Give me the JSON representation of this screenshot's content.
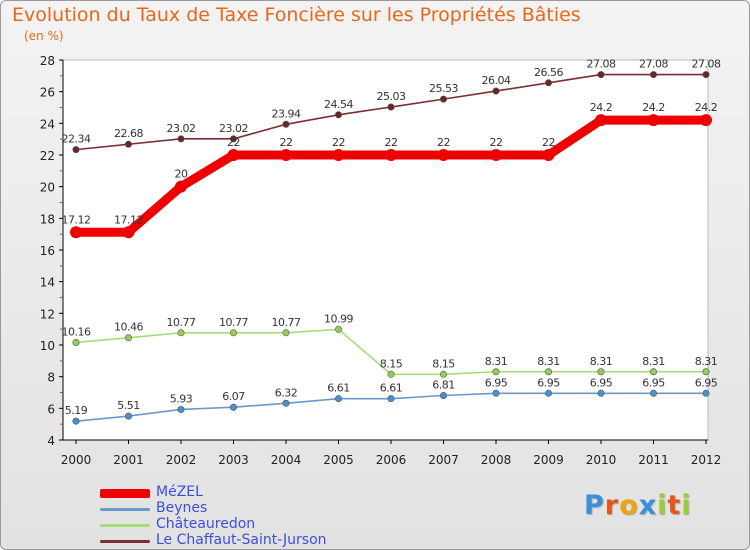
{
  "header": {
    "title": "Evolution du Taux de Taxe Foncière sur les Propriétés Bâties",
    "unit": "(en %)"
  },
  "chart_data": {
    "type": "line",
    "title": "Evolution du Taux de Taxe Foncière sur les Propriétés Bâties",
    "ylabel": "(en %)",
    "xlabel": "",
    "categories": [
      "2000",
      "2001",
      "2002",
      "2003",
      "2004",
      "2005",
      "2006",
      "2007",
      "2008",
      "2009",
      "2010",
      "2011",
      "2012"
    ],
    "ylim": [
      4,
      28
    ],
    "yticks": [
      4,
      6,
      8,
      10,
      12,
      14,
      16,
      18,
      20,
      22,
      24,
      26,
      28
    ],
    "grid": false,
    "legend_position": "bottom-left",
    "series": [
      {
        "name": "MéZEL",
        "color": "#ee0000",
        "emphasis": true,
        "values": [
          17.12,
          17.12,
          20,
          22,
          22,
          22,
          22,
          22,
          22,
          22,
          24.2,
          24.2,
          24.2
        ],
        "labels": [
          "17.12",
          "17.12",
          "20",
          "22",
          "22",
          "22",
          "22",
          "22",
          "22",
          "22",
          "24.2",
          "24.2",
          "24.2"
        ]
      },
      {
        "name": "Beynes",
        "color": "#6b9ac7",
        "marker_color": "#4a8fd0",
        "emphasis": false,
        "values": [
          5.19,
          5.51,
          5.93,
          6.07,
          6.32,
          6.61,
          6.61,
          6.81,
          6.95,
          6.95,
          6.95,
          6.95,
          6.95
        ],
        "labels": [
          "5.19",
          "5.51",
          "5.93",
          "6.07",
          "6.32",
          "6.61",
          "6.61",
          "6.81",
          "6.95",
          "6.95",
          "6.95",
          "6.95",
          "6.95"
        ]
      },
      {
        "name": "Châteauredon",
        "color": "#a6dc78",
        "marker_color": "#8ed255",
        "emphasis": false,
        "values": [
          10.16,
          10.46,
          10.77,
          10.77,
          10.77,
          10.99,
          8.15,
          8.15,
          8.31,
          8.31,
          8.31,
          8.31,
          8.31
        ],
        "labels": [
          "10.16",
          "10.46",
          "10.77",
          "10.77",
          "10.77",
          "10.99",
          "8.15",
          "8.15",
          "8.31",
          "8.31",
          "8.31",
          "8.31",
          "8.31"
        ]
      },
      {
        "name": "Le Chaffaut-Saint-Jurson",
        "color": "#7a3030",
        "marker_color": "#6b2525",
        "emphasis": false,
        "values": [
          22.34,
          22.68,
          23.02,
          23.02,
          23.94,
          24.54,
          25.03,
          25.53,
          26.04,
          26.56,
          27.08,
          27.08,
          27.08
        ],
        "labels": [
          "22.34",
          "22.68",
          "23.02",
          "23.02",
          "23.94",
          "24.54",
          "25.03",
          "25.53",
          "26.04",
          "26.56",
          "27.08",
          "27.08",
          "27.08"
        ]
      }
    ]
  },
  "legend": {
    "items": [
      {
        "label": "MéZEL",
        "color": "#ee0000"
      },
      {
        "label": "Beynes",
        "color": "#6b9ac7"
      },
      {
        "label": "Châteauredon",
        "color": "#a6dc78"
      },
      {
        "label": "Le Chaffaut-Saint-Jurson",
        "color": "#7a3030"
      }
    ]
  },
  "logo": {
    "letters": [
      "P",
      "r",
      "o",
      "x",
      "i",
      "t",
      "i"
    ],
    "colors": [
      "#3a8fd8",
      "#e8541e",
      "#f0a30a",
      "#3a8fd8",
      "#9acd32",
      "#e8541e",
      "#9acd32"
    ]
  }
}
